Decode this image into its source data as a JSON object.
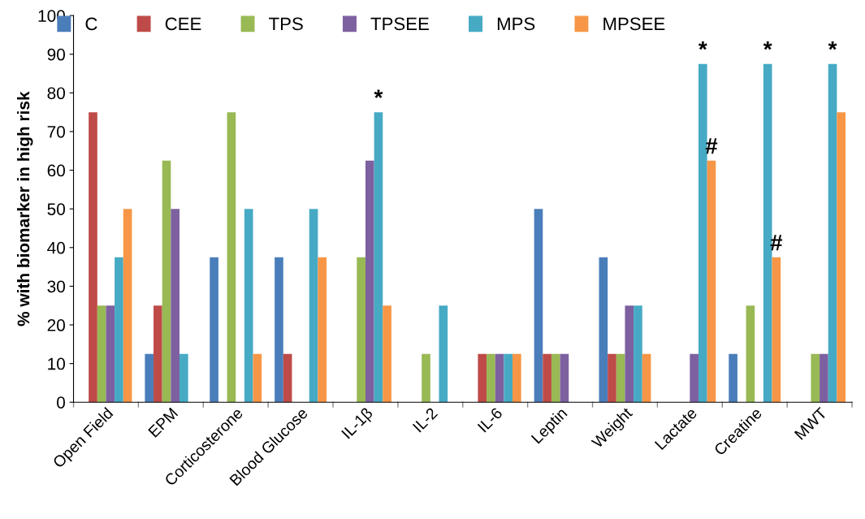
{
  "chart_data": {
    "type": "bar",
    "ylabel": "% with biomarker in high risk",
    "categories": [
      "Open Field",
      "EPM",
      "Corticosterone",
      "Blood Glucose",
      "IL-1β",
      "IL-2",
      "IL-6",
      "Leptin",
      "Weight",
      "Lactate",
      "Creatine",
      "MWT"
    ],
    "series": [
      {
        "name": "C",
        "color": "#4a7ebb",
        "values": [
          0,
          12.5,
          37.5,
          37.5,
          0,
          0,
          0,
          50,
          37.5,
          0,
          12.5,
          0
        ]
      },
      {
        "name": "CEE",
        "color": "#be4b48",
        "values": [
          75,
          25,
          0,
          12.5,
          0,
          0,
          12.5,
          12.5,
          12.5,
          0,
          0,
          0
        ]
      },
      {
        "name": "TPS",
        "color": "#98b954",
        "values": [
          25,
          62.5,
          75,
          0,
          37.5,
          12.5,
          12.5,
          12.5,
          12.5,
          0,
          25,
          12.5
        ]
      },
      {
        "name": "TPSEE",
        "color": "#7d60a0",
        "values": [
          25,
          50,
          0,
          0,
          62.5,
          0,
          12.5,
          12.5,
          25,
          12.5,
          0,
          12.5
        ]
      },
      {
        "name": "MPS",
        "color": "#46aac5",
        "values": [
          37.5,
          12.5,
          50,
          50,
          75,
          25,
          12.5,
          0,
          25,
          87.5,
          87.5,
          87.5
        ],
        "value_labels": [
          null,
          null,
          null,
          null,
          "*",
          null,
          null,
          null,
          null,
          "*",
          "*",
          "*"
        ]
      },
      {
        "name": "MPSEE",
        "color": "#f79646",
        "values": [
          50,
          0,
          12.5,
          37.5,
          25,
          0,
          12.5,
          0,
          12.5,
          62.5,
          37.5,
          75
        ],
        "value_labels": [
          null,
          null,
          null,
          null,
          null,
          null,
          null,
          null,
          null,
          "#",
          "#",
          null
        ]
      }
    ],
    "ylim": [
      0,
      100
    ],
    "yticks": [
      0,
      10,
      20,
      30,
      40,
      50,
      60,
      70,
      80,
      90,
      100
    ],
    "legend": "top",
    "grid": false
  }
}
